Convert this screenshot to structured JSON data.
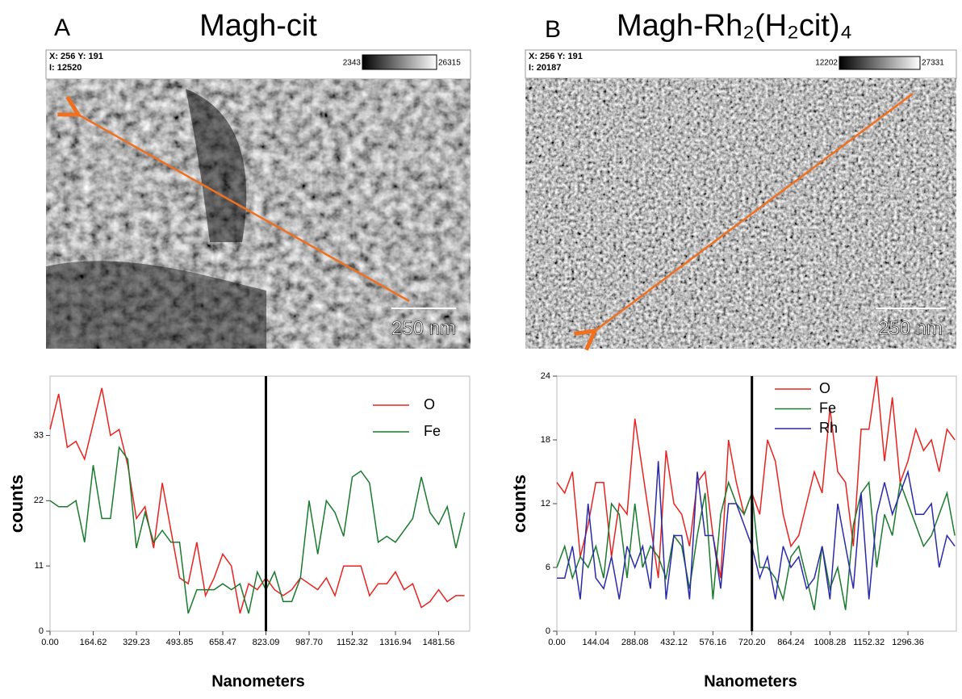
{
  "chart_data": [
    {
      "type": "line",
      "panel_label": "A",
      "title": "Magh-cit",
      "image": {
        "position_text": "X: 256 Y: 191",
        "intensity_text": "I: 12520",
        "colorbar_min": "2343",
        "colorbar_max": "26315",
        "scale_bar": "250 nm"
      },
      "xlabel": "Nanometers",
      "ylabel": "counts",
      "x": [
        0,
        32.92,
        65.85,
        98.77,
        131.7,
        164.62,
        197.54,
        230.46,
        263.39,
        296.31,
        329.23,
        362.16,
        395.08,
        428.0,
        460.93,
        493.85,
        526.77,
        559.7,
        592.62,
        625.54,
        658.47,
        691.39,
        724.31,
        757.24,
        790.16,
        823.09,
        856.01,
        888.93,
        921.86,
        954.78,
        987.7,
        1020.62,
        1053.55,
        1086.47,
        1119.39,
        1152.32,
        1185.24,
        1218.16,
        1251.09,
        1284.01,
        1316.94,
        1349.86,
        1382.78,
        1415.71,
        1448.63,
        1481.56,
        1514.48,
        1547.4,
        1580.33
      ],
      "series": [
        {
          "name": "O",
          "color": "#e8231f",
          "values": [
            34,
            40,
            31,
            32,
            29,
            35,
            41,
            33,
            34,
            28,
            19,
            21,
            14,
            25,
            17,
            9,
            8,
            15,
            6,
            9,
            13,
            11,
            3,
            8,
            7,
            9,
            7,
            6,
            7,
            9,
            8,
            7,
            9,
            6,
            11,
            11,
            11,
            6,
            8,
            8,
            10,
            7,
            8,
            4,
            5,
            7,
            5,
            6,
            6
          ]
        },
        {
          "name": "Fe",
          "color": "#1a7a2e",
          "values": [
            22,
            21,
            21,
            22,
            15,
            28,
            19,
            19,
            31,
            29,
            14,
            20,
            15,
            17,
            15,
            15,
            3,
            7,
            7,
            7,
            8,
            7,
            8,
            3,
            10,
            7,
            10,
            5,
            5,
            9,
            22,
            13,
            22,
            20,
            16,
            26,
            27,
            25,
            15,
            16,
            15,
            17,
            19,
            26,
            20,
            18,
            21,
            14,
            20
          ]
        }
      ],
      "xlim": [
        0,
        1600
      ],
      "ylim": [
        0,
        43
      ],
      "xticks": [
        {
          "value": 0,
          "label": "0.00"
        },
        {
          "value": 164.62,
          "label": "164.62"
        },
        {
          "value": 329.23,
          "label": "329.23"
        },
        {
          "value": 493.85,
          "label": "493.85"
        },
        {
          "value": 658.47,
          "label": "658.47"
        },
        {
          "value": 823.09,
          "label": "823.09"
        },
        {
          "value": 987.7,
          "label": "987.70"
        },
        {
          "value": 1152.32,
          "label": "1152.32"
        },
        {
          "value": 1316.94,
          "label": "1316.94"
        },
        {
          "value": 1481.56,
          "label": "1481.56"
        }
      ],
      "yticks": [
        0,
        11,
        22,
        33
      ],
      "cursor_x": 823.09,
      "legend": "upper right"
    },
    {
      "type": "line",
      "panel_label": "B",
      "title": "Magh-Rh₂(H₂cit)₄",
      "image": {
        "position_text": "X: 256 Y: 191",
        "intensity_text": "I: 20187",
        "colorbar_min": "12202",
        "colorbar_max": "27331",
        "scale_bar": "250 nm"
      },
      "xlabel": "Nanometers",
      "ylabel": "counts",
      "x": [
        0,
        28.81,
        57.62,
        86.42,
        115.23,
        144.04,
        172.85,
        201.66,
        230.46,
        259.27,
        288.08,
        316.89,
        345.7,
        374.5,
        403.31,
        432.12,
        460.93,
        489.74,
        518.54,
        547.35,
        576.16,
        604.97,
        633.78,
        662.58,
        691.39,
        720.2,
        749.01,
        777.82,
        806.62,
        835.43,
        864.24,
        893.05,
        921.86,
        950.66,
        979.47,
        1008.28,
        1037.09,
        1065.9,
        1094.7,
        1123.51,
        1152.32,
        1181.13,
        1209.94,
        1238.74,
        1267.55,
        1296.36,
        1325.17,
        1353.98,
        1382.78,
        1411.59,
        1440.4,
        1469.21
      ],
      "series": [
        {
          "name": "O",
          "color": "#e8231f",
          "values": [
            14,
            13,
            15,
            7,
            10,
            14,
            14,
            7,
            12,
            11,
            20,
            15,
            10,
            5,
            17,
            12,
            11,
            8,
            14,
            15,
            9,
            5,
            18,
            14,
            11,
            13,
            11,
            18,
            16,
            11,
            8,
            9,
            12,
            15,
            13,
            21,
            15,
            14,
            8,
            19,
            19,
            24,
            16,
            22,
            14,
            16,
            19,
            17,
            18,
            15,
            19,
            18
          ]
        },
        {
          "name": "Fe",
          "color": "#1a7a2e",
          "values": [
            6,
            8,
            5,
            7,
            6,
            8,
            5,
            12,
            11,
            5,
            12,
            6,
            8,
            7,
            5,
            9,
            8,
            4,
            9,
            13,
            3,
            11,
            14,
            12,
            11,
            13,
            6,
            6,
            5,
            3,
            7,
            8,
            5,
            2,
            8,
            4,
            6,
            2,
            10,
            13,
            14,
            6,
            11,
            9,
            14,
            12,
            10,
            8,
            9,
            11,
            13,
            9
          ]
        },
        {
          "name": "Rh",
          "color": "#2a2aa8",
          "values": [
            5,
            5,
            8,
            3,
            12,
            5,
            4,
            7,
            3,
            8,
            6,
            8,
            4,
            16,
            3,
            9,
            9,
            3,
            15,
            9,
            9,
            4,
            12,
            12,
            10,
            8,
            5,
            7,
            3,
            8,
            6,
            7,
            4,
            5,
            8,
            3,
            12,
            8,
            4,
            13,
            3,
            11,
            14,
            11,
            13,
            15,
            11,
            11,
            12,
            6,
            9,
            8
          ]
        }
      ],
      "xlim": [
        0,
        1475
      ],
      "ylim": [
        0,
        24
      ],
      "xticks": [
        {
          "value": 0,
          "label": "0.00"
        },
        {
          "value": 144.04,
          "label": "144.04"
        },
        {
          "value": 288.08,
          "label": "288.08"
        },
        {
          "value": 432.12,
          "label": "432.12"
        },
        {
          "value": 576.16,
          "label": "576.16"
        },
        {
          "value": 720.2,
          "label": "720.20"
        },
        {
          "value": 864.24,
          "label": "864.24"
        },
        {
          "value": 1008.28,
          "label": "1008.28"
        },
        {
          "value": 1152.32,
          "label": "1152.32"
        },
        {
          "value": 1296.36,
          "label": "1296.36"
        }
      ],
      "yticks": [
        0,
        6,
        12,
        18,
        24
      ],
      "cursor_x": 720.2,
      "legend": "upper right"
    }
  ]
}
